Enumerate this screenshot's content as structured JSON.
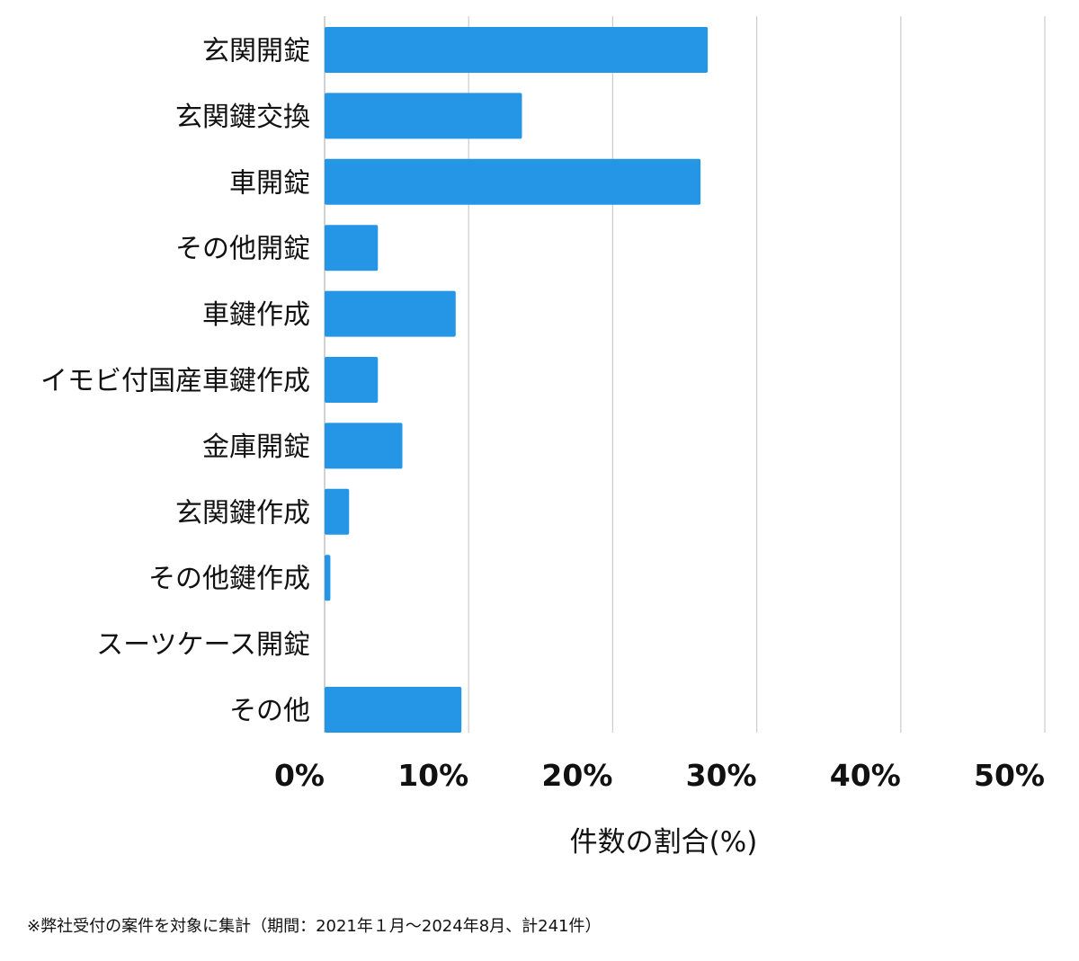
{
  "chart_data": {
    "type": "bar",
    "orientation": "horizontal",
    "categories": [
      "玄関開錠",
      "玄関鍵交換",
      "車開錠",
      "その他開錠",
      "車鍵作成",
      "イモビ付国産車鍵作成",
      "金庫開錠",
      "玄関鍵作成",
      "その他鍵作成",
      "スーツケース開錠",
      "その他"
    ],
    "values": [
      26.6,
      13.7,
      26.1,
      3.7,
      9.1,
      3.7,
      5.4,
      1.7,
      0.4,
      0,
      9.5
    ],
    "xlabel": "件数の割合(%)",
    "ylabel": "",
    "xlim": [
      0,
      50
    ],
    "xticks": [
      "0%",
      "10%",
      "20%",
      "30%",
      "40%",
      "50%"
    ],
    "grid": "vertical",
    "bar_color": "#2596e6",
    "grid_color": "#cccccc"
  },
  "footnote": "※弊社受付の案件を対象に集計（期間：2021年１月〜2024年8月、計241件）"
}
